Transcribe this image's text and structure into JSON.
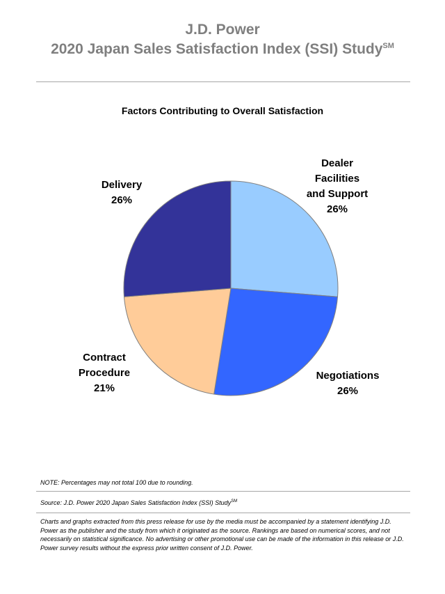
{
  "header": {
    "line1": "J.D. Power",
    "line2": "2020 Japan Sales Satisfaction Index (SSI) Study",
    "line2_sup": "SM"
  },
  "chart_data": {
    "type": "pie",
    "title": "Factors Contributing to Overall Satisfaction",
    "slices": [
      {
        "label": "Dealer Facilities and Support",
        "value": 26,
        "display": "26%",
        "color": "#99ccff"
      },
      {
        "label": "Negotiations",
        "value": 26,
        "display": "26%",
        "color": "#3366ff"
      },
      {
        "label": "Contract Procedure",
        "value": 21,
        "display": "21%",
        "color": "#ffcc99"
      },
      {
        "label": "Delivery",
        "value": 26,
        "display": "26%",
        "color": "#333399"
      }
    ],
    "label_lines": {
      "dealer": [
        "Dealer",
        "Facilities",
        "and Support"
      ],
      "negotiations": [
        "Negotiations"
      ],
      "contract": [
        "Contract",
        "Procedure"
      ],
      "delivery": [
        "Delivery"
      ]
    }
  },
  "footer": {
    "note": "NOTE: Percentages may not total 100 due to rounding.",
    "source": "Source: J.D. Power 2020 Japan Sales Satisfaction Index (SSI) Study",
    "source_sup": "SM",
    "disclaimer": "Charts and graphs extracted from this press release for use by the media must be accompanied by a statement identifying J.D. Power as the publisher and the study from which it originated as the source. Rankings are based on numerical scores, and not necessarily on statistical significance. No advertising or other promotional use can be made of the information in this release or J.D. Power survey results without the express prior written consent of J.D. Power."
  }
}
